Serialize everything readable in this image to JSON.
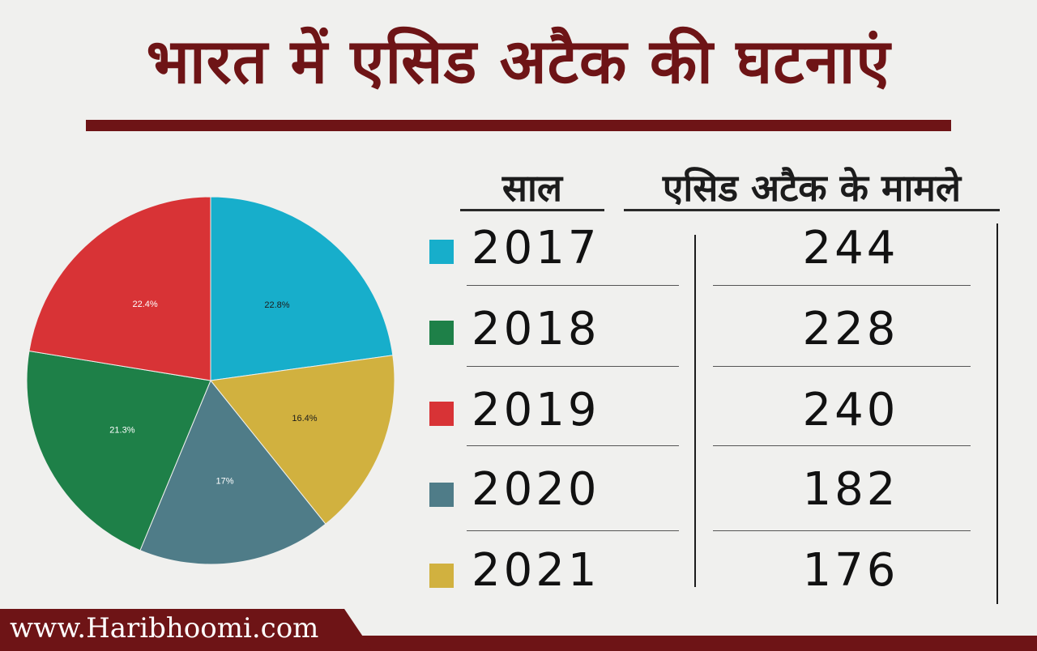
{
  "title": "भारत में एसिड अटैक की घटनाएं",
  "table": {
    "header_year": "साल",
    "header_cases": "एसिड अटैक के मामले",
    "rows": [
      {
        "year": "2017",
        "cases": "244",
        "color": "#17aecb"
      },
      {
        "year": "2018",
        "cases": "228",
        "color": "#1e8048"
      },
      {
        "year": "2019",
        "cases": "240",
        "color": "#d83336"
      },
      {
        "year": "2020",
        "cases": "182",
        "color": "#4f7c88"
      },
      {
        "year": "2021",
        "cases": "176",
        "color": "#d1b13f"
      }
    ]
  },
  "chart_data": {
    "type": "pie",
    "categories": [
      "2017",
      "2018",
      "2019",
      "2020",
      "2021"
    ],
    "values": [
      244,
      228,
      240,
      182,
      176
    ],
    "labels": [
      "22.8%",
      "21.3%",
      "22.4%",
      "17%",
      "16.4%"
    ],
    "colors": [
      "#17aecb",
      "#1e8048",
      "#d83336",
      "#4f7c88",
      "#d1b13f"
    ],
    "slice_order": [
      0,
      4,
      3,
      1,
      2
    ],
    "label_colors": [
      "#1c1c1c",
      "#ffffff",
      "#ffffff",
      "#ffffff",
      "#1c1c1c"
    ]
  },
  "footer": {
    "website": "www.Haribhoomi.com",
    "color": "#6e1416"
  }
}
